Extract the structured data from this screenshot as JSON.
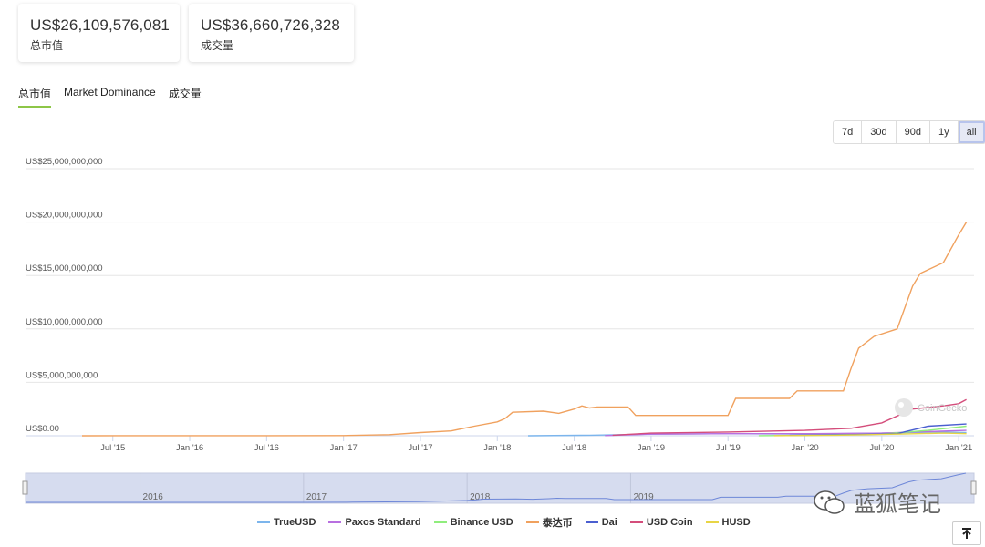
{
  "stats": {
    "market_cap": {
      "value": "US$26,109,576,081",
      "label": "总市值"
    },
    "volume": {
      "value": "US$36,660,726,328",
      "label": "成交量"
    }
  },
  "tabs": [
    {
      "label": "总市值",
      "active": true
    },
    {
      "label": "Market Dominance",
      "active": false
    },
    {
      "label": "成交量",
      "active": false
    }
  ],
  "ranges": [
    {
      "label": "7d",
      "active": false
    },
    {
      "label": "30d",
      "active": false
    },
    {
      "label": "90d",
      "active": false
    },
    {
      "label": "1y",
      "active": false
    },
    {
      "label": "all",
      "active": true
    }
  ],
  "chart_logo": "CoinGecko",
  "watermark": "蓝狐笔记",
  "chart_data": {
    "type": "line",
    "title": "",
    "xlabel": "",
    "ylabel": "",
    "x_ticks": [
      "Jul '15",
      "Jan '16",
      "Jul '16",
      "Jan '17",
      "Jul '17",
      "Jan '18",
      "Jul '18",
      "Jan '19",
      "Jul '19",
      "Jan '20",
      "Jul '20",
      "Jan '21"
    ],
    "y_ticks": [
      "US$0.00",
      "US$5,000,000,000",
      "US$10,000,000,000",
      "US$15,000,000,000",
      "US$20,000,000,000",
      "US$25,000,000,000"
    ],
    "ylim": [
      0,
      25000000000
    ],
    "xlim": [
      2015.3,
      2021.1
    ],
    "navigator_ticks": [
      "2016",
      "2017",
      "2018",
      "2019"
    ],
    "series": [
      {
        "name": "TrueUSD",
        "color": "#7cb5ec",
        "x": [
          2018.2,
          2018.6,
          2019.0,
          2019.5,
          2020.0,
          2020.5,
          2020.9,
          2021.05
        ],
        "y": [
          0,
          50000000.0,
          150000000.0,
          200000000.0,
          150000000.0,
          250000000.0,
          350000000.0,
          300000000.0
        ]
      },
      {
        "name": "Paxos Standard",
        "color": "#b86fe0",
        "x": [
          2018.7,
          2019.0,
          2019.5,
          2020.0,
          2020.5,
          2021.05
        ],
        "y": [
          20000000.0,
          150000000.0,
          200000000.0,
          200000000.0,
          250000000.0,
          500000000.0
        ]
      },
      {
        "name": "Binance USD",
        "color": "#90ed7d",
        "x": [
          2019.7,
          2020.0,
          2020.5,
          2020.8,
          2021.05
        ],
        "y": [
          10000000.0,
          30000000.0,
          150000000.0,
          500000000.0,
          900000000.0
        ]
      },
      {
        "name": "泰达币",
        "color": "#f0a15e",
        "x": [
          2015.3,
          2016.0,
          2016.5,
          2017.0,
          2017.3,
          2017.5,
          2017.7,
          2017.85,
          2018.0,
          2018.05,
          2018.1,
          2018.3,
          2018.4,
          2018.5,
          2018.55,
          2018.6,
          2018.65,
          2018.85,
          2018.9,
          2019.5,
          2019.55,
          2019.9,
          2019.95,
          2020.25,
          2020.3,
          2020.35,
          2020.45,
          2020.6,
          2020.7,
          2020.75,
          2020.9,
          2021.0,
          2021.05
        ],
        "y": [
          0,
          10000000.0,
          10000000.0,
          20000000.0,
          100000000.0,
          300000000.0,
          450000000.0,
          900000000.0,
          1300000000.0,
          1600000000.0,
          2200000000.0,
          2300000000.0,
          2100000000.0,
          2500000000.0,
          2800000000.0,
          2600000000.0,
          2700000000.0,
          2700000000.0,
          1900000000.0,
          1900000000.0,
          3500000000.0,
          3500000000.0,
          4200000000.0,
          4200000000.0,
          6300000000.0,
          8200000000.0,
          9300000000.0,
          10000000000.0,
          14000000000.0,
          15200000000.0,
          16200000000.0,
          18800000000.0,
          20000000000.0
        ]
      },
      {
        "name": "Dai",
        "color": "#4b5fd0",
        "x": [
          2019.9,
          2020.3,
          2020.6,
          2020.8,
          2021.05
        ],
        "y": [
          30000000.0,
          100000000.0,
          200000000.0,
          900000000.0,
          1100000000.0
        ]
      },
      {
        "name": "USD Coin",
        "color": "#d44d7b",
        "x": [
          2018.75,
          2019.0,
          2019.5,
          2020.0,
          2020.3,
          2020.5,
          2020.7,
          2020.9,
          2021.0,
          2021.05
        ],
        "y": [
          50000000.0,
          250000000.0,
          350000000.0,
          500000000.0,
          700000000.0,
          1200000000.0,
          2500000000.0,
          2800000000.0,
          3000000000.0,
          3400000000.0
        ]
      },
      {
        "name": "HUSD",
        "color": "#e8d545",
        "x": [
          2019.8,
          2020.2,
          2020.6,
          2020.9,
          2021.05
        ],
        "y": [
          10000000.0,
          50000000.0,
          150000000.0,
          250000000.0,
          200000000.0
        ]
      }
    ]
  }
}
